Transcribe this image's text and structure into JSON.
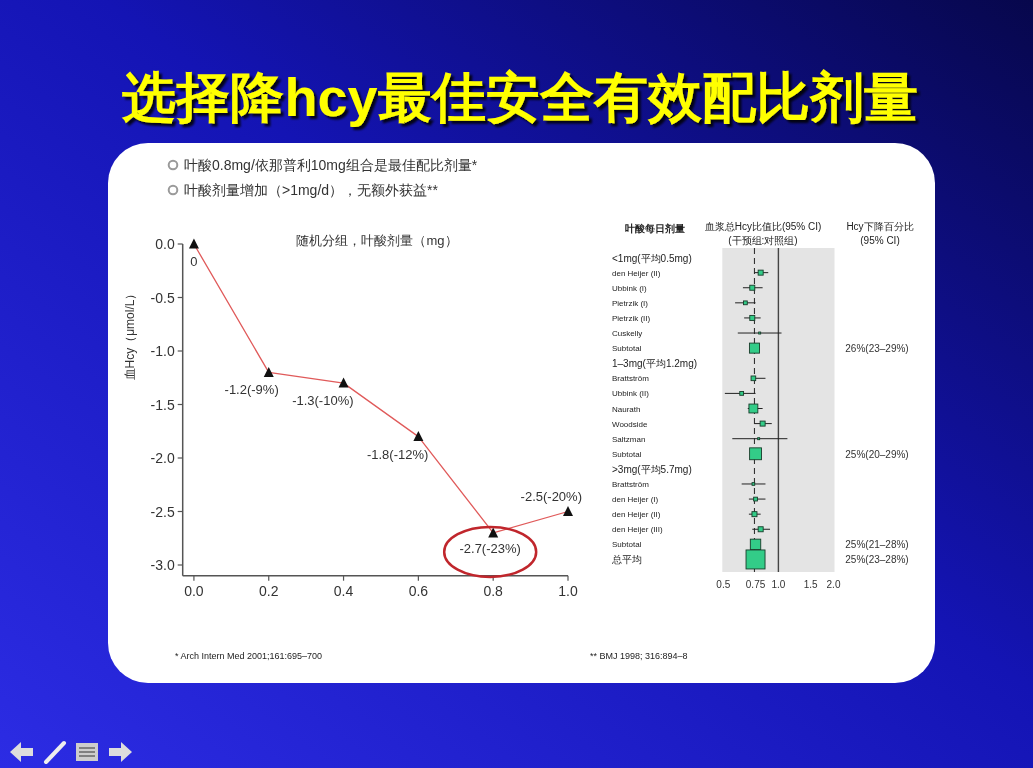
{
  "chart_data": [
    {
      "type": "line",
      "title": "选择降hcy最佳安全有效配比剂量",
      "subtitle": "叶酸0.8mg/依那普利10mg组合是最佳配比剂量*\n叶酸剂量增加（>1mg/d），无额外获益**",
      "xlabel": "随机分组，叶酸剂量（mg）",
      "ylabel": "血Hcy（μmol/L）",
      "x": [
        0,
        0.2,
        0.4,
        0.6,
        0.8,
        1.0
      ],
      "values": [
        0,
        -1.2,
        -1.3,
        -1.8,
        -2.7,
        -2.5
      ],
      "value_labels": [
        "0",
        "-1.2(-9%)",
        "-1.3(-10%)",
        "-1.8(-12%)",
        "-2.7(-23%)",
        "-2.5(-20%)"
      ],
      "color": "#e05a5a",
      "marker": "triangle",
      "line_style": "solid",
      "xlim": [
        -0.03,
        1.0
      ],
      "ylim": [
        -3.1,
        0
      ],
      "xticks": [
        {
          "value": 0,
          "label": "0.0"
        },
        0.2,
        0.4,
        0.6,
        0.8,
        {
          "value": 1,
          "label": "1.0"
        }
      ],
      "yticks": [
        {
          "value": 0,
          "label": "0.0"
        },
        -0.5,
        {
          "value": -1,
          "label": "-1.0"
        },
        -1.5,
        {
          "value": -2,
          "label": "-2.0"
        },
        -2.5,
        {
          "value": -3,
          "label": "-3.0"
        }
      ],
      "annotations": [
        "* Arch Intern Med 2001;161:695–700"
      ]
    },
    {
      "type": "bubble",
      "orientation": "horizontal",
      "categories": [
        "<1mg(平均0.5mg)",
        "den Heijer (II)",
        "Ubbink (I)",
        "Pietrzik (I)",
        "Pietrzik (II)",
        "Cuskelly",
        "Subtotal",
        "1–3mg(平均1.2mg)",
        "Brattström",
        "Ubbink (II)",
        "Naurath",
        "Woodside",
        "Saltzman",
        "Subtotal",
        ">3mg(平均5.7mg)",
        "Brattström",
        "den Heijer (I)",
        "den Heijer (II)",
        "den Heijer (III)",
        "Subtotal",
        "总平均"
      ],
      "values": [
        null,
        0.8,
        0.72,
        0.66,
        0.72,
        0.79,
        0.74,
        null,
        0.73,
        0.63,
        0.73,
        0.82,
        0.78,
        0.75,
        null,
        0.73,
        0.75,
        0.74,
        0.8,
        0.75,
        0.75
      ],
      "errors": [
        null,
        [
          0.74,
          0.88
        ],
        [
          0.64,
          0.82
        ],
        [
          0.58,
          0.75
        ],
        [
          0.65,
          0.8
        ],
        [
          0.6,
          1.04
        ],
        null,
        null,
        [
          0.71,
          0.85
        ],
        [
          0.51,
          0.75
        ],
        [
          0.68,
          0.82
        ],
        [
          0.74,
          0.92
        ],
        [
          0.56,
          1.12
        ],
        null,
        null,
        [
          0.63,
          0.85
        ],
        [
          0.69,
          0.85
        ],
        [
          0.69,
          0.8
        ],
        [
          0.72,
          0.9
        ],
        null,
        null
      ],
      "sizes": [
        null,
        0.07,
        0.07,
        0.04,
        0.07,
        0.01,
        0.28,
        null,
        0.06,
        0.04,
        0.22,
        0.07,
        0.01,
        0.39,
        null,
        0.02,
        0.04,
        0.07,
        0.07,
        0.3,
        1
      ],
      "value_labels": [
        null,
        null,
        null,
        null,
        null,
        null,
        "26%(23–29%)",
        null,
        null,
        null,
        null,
        null,
        null,
        "25%(20–29%)",
        null,
        null,
        null,
        null,
        null,
        "25%(21–28%)",
        "25%(23–28%)"
      ],
      "color": "#33cc88",
      "marker": "square",
      "log": "x",
      "xlim": [
        0.5,
        2.0
      ],
      "xticks": [
        0.5,
        0.75,
        {
          "value": 1,
          "label": "1.0"
        },
        1.5,
        {
          "value": 2,
          "label": "2.0"
        }
      ],
      "ref_lines": [
        {
          "axis": "x",
          "value": 1,
          "color": "#444444",
          "line_style": "solid"
        },
        {
          "axis": "x",
          "value": 0.74,
          "color": "#333333",
          "line_style": "dashed"
        }
      ],
      "xlabel": "血浆总Hcy比值比(95% CI)\n(干预组:对照组)",
      "ylabel": "叶酸每日剂量",
      "annotations": [
        "Hcy下降百分比\n(95% CI)",
        "** BMJ 1998; 316:894–8"
      ]
    }
  ]
}
